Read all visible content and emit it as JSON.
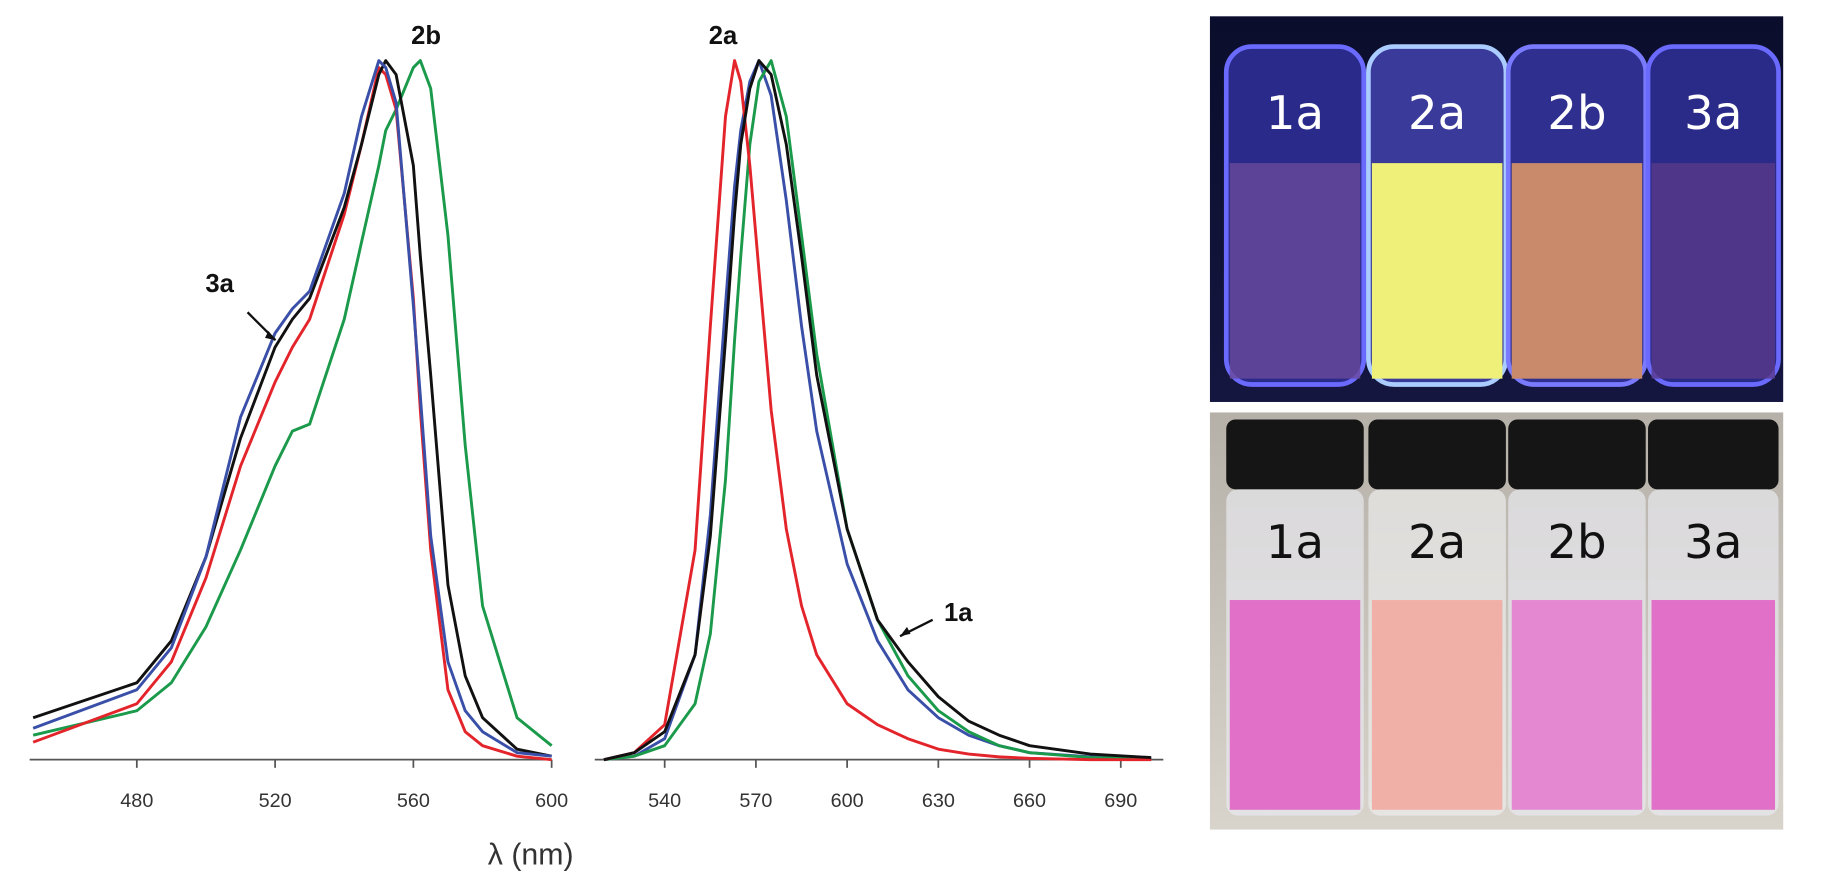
{
  "chart_data": [
    {
      "type": "line",
      "xlabel": "λ (nm)",
      "x": [
        450,
        480,
        490,
        500,
        510,
        520,
        525,
        530,
        540,
        545,
        550,
        552,
        555,
        560,
        562,
        565,
        570,
        575,
        580,
        590,
        600
      ],
      "xlim": [
        449,
        600
      ],
      "xticks": [
        480,
        520,
        560,
        600
      ],
      "ylim": [
        0,
        1
      ],
      "series": [
        {
          "color": "#111111",
          "values": [
            0.06,
            0.11,
            0.17,
            0.29,
            0.46,
            0.59,
            0.63,
            0.66,
            0.79,
            0.88,
            0.98,
            1.0,
            0.98,
            0.85,
            0.72,
            0.55,
            0.25,
            0.12,
            0.06,
            0.015,
            0.005
          ]
        },
        {
          "color": "#e3242b",
          "values": [
            0.025,
            0.08,
            0.14,
            0.26,
            0.42,
            0.54,
            0.59,
            0.63,
            0.78,
            0.88,
            0.99,
            0.98,
            0.93,
            0.66,
            0.5,
            0.3,
            0.1,
            0.04,
            0.02,
            0.005,
            0
          ]
        },
        {
          "name": "2b",
          "color": "#1a9a4a",
          "values": [
            0.035,
            0.07,
            0.11,
            0.19,
            0.3,
            0.42,
            0.47,
            0.48,
            0.63,
            0.74,
            0.85,
            0.9,
            0.93,
            0.99,
            1.0,
            0.96,
            0.75,
            0.45,
            0.22,
            0.06,
            0.02
          ]
        },
        {
          "name": "3a",
          "color": "#3a4fa8",
          "values": [
            0.045,
            0.1,
            0.16,
            0.29,
            0.49,
            0.61,
            0.645,
            0.67,
            0.81,
            0.92,
            1.0,
            0.99,
            0.94,
            0.65,
            0.52,
            0.32,
            0.14,
            0.07,
            0.04,
            0.01,
            0.005
          ]
        }
      ]
    },
    {
      "type": "line",
      "x": [
        520,
        530,
        540,
        550,
        555,
        560,
        563,
        565,
        568,
        571,
        575,
        580,
        585,
        590,
        600,
        610,
        620,
        630,
        640,
        650,
        660,
        680,
        700
      ],
      "xlim": [
        517,
        704
      ],
      "xticks": [
        540,
        570,
        600,
        630,
        660,
        690
      ],
      "ylim": [
        0,
        1
      ],
      "series": [
        {
          "color": "#1a9a4a",
          "values": [
            0,
            0.005,
            0.02,
            0.08,
            0.18,
            0.4,
            0.6,
            0.72,
            0.88,
            0.97,
            1.0,
            0.92,
            0.75,
            0.58,
            0.33,
            0.2,
            0.12,
            0.07,
            0.04,
            0.02,
            0.01,
            0.003,
            0.001
          ]
        },
        {
          "color": "#3a4fa8",
          "values": [
            0,
            0.005,
            0.03,
            0.15,
            0.35,
            0.65,
            0.82,
            0.9,
            0.97,
            1.0,
            0.95,
            0.8,
            0.62,
            0.47,
            0.28,
            0.17,
            0.1,
            0.06,
            0.035,
            0.02,
            0.01,
            0.004,
            0.001
          ]
        },
        {
          "name": "2a",
          "color": "#e3242b",
          "values": [
            0,
            0.01,
            0.05,
            0.3,
            0.62,
            0.92,
            1.0,
            0.97,
            0.85,
            0.7,
            0.5,
            0.33,
            0.22,
            0.15,
            0.08,
            0.05,
            0.03,
            0.015,
            0.008,
            0.004,
            0.002,
            0,
            0
          ]
        },
        {
          "name": "1a",
          "color": "#111111",
          "values": [
            0,
            0.01,
            0.04,
            0.15,
            0.32,
            0.6,
            0.78,
            0.88,
            0.96,
            1.0,
            0.98,
            0.88,
            0.72,
            0.55,
            0.33,
            0.2,
            0.14,
            0.09,
            0.055,
            0.035,
            0.02,
            0.008,
            0.003
          ]
        }
      ]
    }
  ],
  "photos": [
    {
      "labels": [
        "1a",
        "2a",
        "2b",
        "3a"
      ]
    },
    {
      "labels": [
        "1a",
        "2a",
        "2b",
        "3a"
      ]
    }
  ]
}
